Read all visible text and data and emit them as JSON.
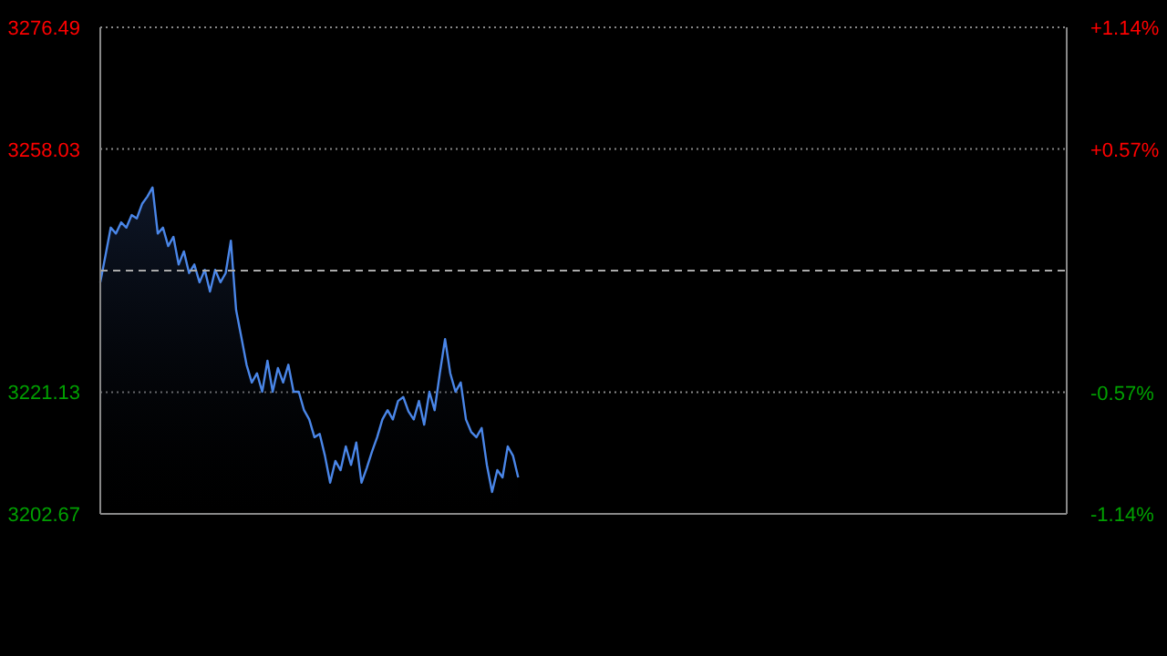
{
  "chart_data": {
    "type": "area",
    "categories": [
      null,
      null,
      null,
      null,
      null,
      null,
      null,
      null,
      null,
      null,
      null,
      null,
      null,
      null,
      null,
      null,
      null,
      null,
      null,
      null,
      null,
      null,
      null,
      null,
      null,
      null,
      null,
      null,
      null,
      null,
      null,
      null,
      null,
      null,
      null,
      null,
      null,
      null,
      null,
      null,
      null,
      null,
      null,
      null,
      null,
      null,
      null,
      null,
      null,
      null,
      null,
      null,
      null,
      null,
      null,
      null,
      null,
      null,
      null,
      null,
      null,
      null,
      null,
      null,
      null,
      null,
      null,
      null,
      null,
      null,
      null,
      null,
      null,
      null,
      null,
      null,
      null,
      null,
      null,
      null,
      null,
      null,
      null,
      null,
      null,
      null,
      null,
      null,
      null,
      null,
      null,
      null,
      null,
      null,
      null,
      null,
      null,
      null,
      null,
      null,
      null,
      null,
      null,
      null,
      null,
      null,
      null,
      null,
      null,
      null,
      null,
      null,
      null,
      null,
      null,
      null,
      null,
      null,
      null,
      null,
      null,
      null,
      null,
      null,
      null,
      null,
      null,
      null,
      null,
      null,
      null,
      null,
      null,
      null,
      null,
      null,
      null,
      null,
      null,
      null,
      null,
      null,
      null,
      null,
      null,
      null,
      null,
      null,
      null,
      null,
      null,
      null,
      null,
      null,
      null,
      null,
      null,
      null,
      null,
      null,
      null,
      null,
      null,
      null,
      null,
      null,
      null,
      null,
      null,
      null,
      null,
      null,
      null,
      null,
      null,
      null,
      null,
      null,
      null,
      null,
      null,
      null,
      null,
      null,
      null,
      null
    ],
    "series": [
      {
        "color": "#4a86e8",
        "values": [
          3237.8,
          3241.9,
          3246.1,
          3245.2,
          3246.9,
          3246.1,
          3248.0,
          3247.5,
          3249.7,
          3250.8,
          3252.2,
          3245.2,
          3246.1,
          3243.3,
          3244.7,
          3240.5,
          3242.5,
          3239.2,
          3240.5,
          3237.8,
          3239.7,
          3236.4,
          3239.7,
          3237.8,
          3239.2,
          3244.1,
          3233.6,
          3229.5,
          3225.3,
          3222.6,
          3224.0,
          3221.2,
          3225.9,
          3221.2,
          3224.8,
          3222.6,
          3225.3,
          3221.2,
          3221.2,
          3218.4,
          3217.0,
          3214.3,
          3214.8,
          3211.5,
          3207.4,
          3210.7,
          3209.3,
          3212.9,
          3210.1,
          3213.5,
          3207.4,
          3209.6,
          3212.1,
          3214.3,
          3217.0,
          3218.4,
          3217.0,
          3219.8,
          3220.4,
          3218.2,
          3217.0,
          3219.8,
          3216.2,
          3221.2,
          3218.4,
          3224.0,
          3229.2,
          3224.0,
          3221.2,
          3222.6,
          3217.0,
          3215.1,
          3214.3,
          3215.7,
          3210.1,
          3206.0,
          3209.3,
          3208.2,
          3212.9,
          3211.5,
          3208.2,
          null,
          null,
          null,
          null,
          null,
          null,
          null,
          null,
          null,
          null,
          null,
          null,
          null,
          null,
          null,
          null,
          null,
          null,
          null,
          null,
          null,
          null,
          null,
          null,
          null,
          null,
          null,
          null,
          null,
          null,
          null,
          null,
          null,
          null,
          null,
          null,
          null,
          null,
          null,
          null,
          null,
          null,
          null,
          null,
          null,
          null,
          null,
          null,
          null,
          null,
          null,
          null,
          null,
          null,
          null,
          null,
          null,
          null,
          null,
          null,
          null,
          null,
          null,
          null,
          null,
          null,
          null,
          null,
          null,
          null,
          null,
          null,
          null,
          null,
          null,
          null,
          null,
          null,
          null,
          null,
          null,
          null,
          null,
          null,
          null,
          null,
          null,
          null,
          null,
          null,
          null,
          null,
          null,
          null,
          null,
          null,
          null,
          null,
          null,
          null,
          null,
          null,
          null,
          null,
          null
        ]
      }
    ],
    "ylim": [
      3202.67,
      3276.49
    ],
    "yticks": [
      3202.67,
      3221.13,
      3258.03,
      3276.49
    ],
    "y2lim": [
      -1.14,
      1.14
    ],
    "y2ticks": [
      {
        "value": -1.14,
        "label": "-1.14%"
      },
      {
        "value": -0.57,
        "label": "-0.57%"
      },
      {
        "value": 0.57,
        "label": "+0.57%"
      },
      {
        "value": 1.14,
        "label": "+1.14%"
      }
    ],
    "ref_lines": [
      {
        "axis": "y",
        "value": 3239.58,
        "color": "#aaaaaa",
        "line_style": "dashed"
      }
    ],
    "grid": "y"
  }
}
